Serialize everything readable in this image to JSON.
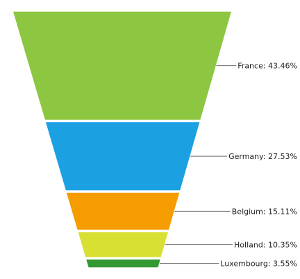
{
  "chart_data": {
    "type": "funnel",
    "title": "",
    "legend": "none",
    "grid": false,
    "categories": [
      "France",
      "Germany",
      "Belgium",
      "Holland",
      "Luxembourg"
    ],
    "values": [
      43.46,
      27.53,
      15.11,
      10.35,
      3.55
    ],
    "unit": "%",
    "labels": [
      "France: 43.46%",
      "Germany: 27.53%",
      "Belgium: 15.11%",
      "Holland: 10.35%",
      "Luxembourg: 3.55%"
    ],
    "colors": [
      "#8dc641",
      "#1ba1e2",
      "#f59c00",
      "#d8e033",
      "#339933"
    ]
  }
}
